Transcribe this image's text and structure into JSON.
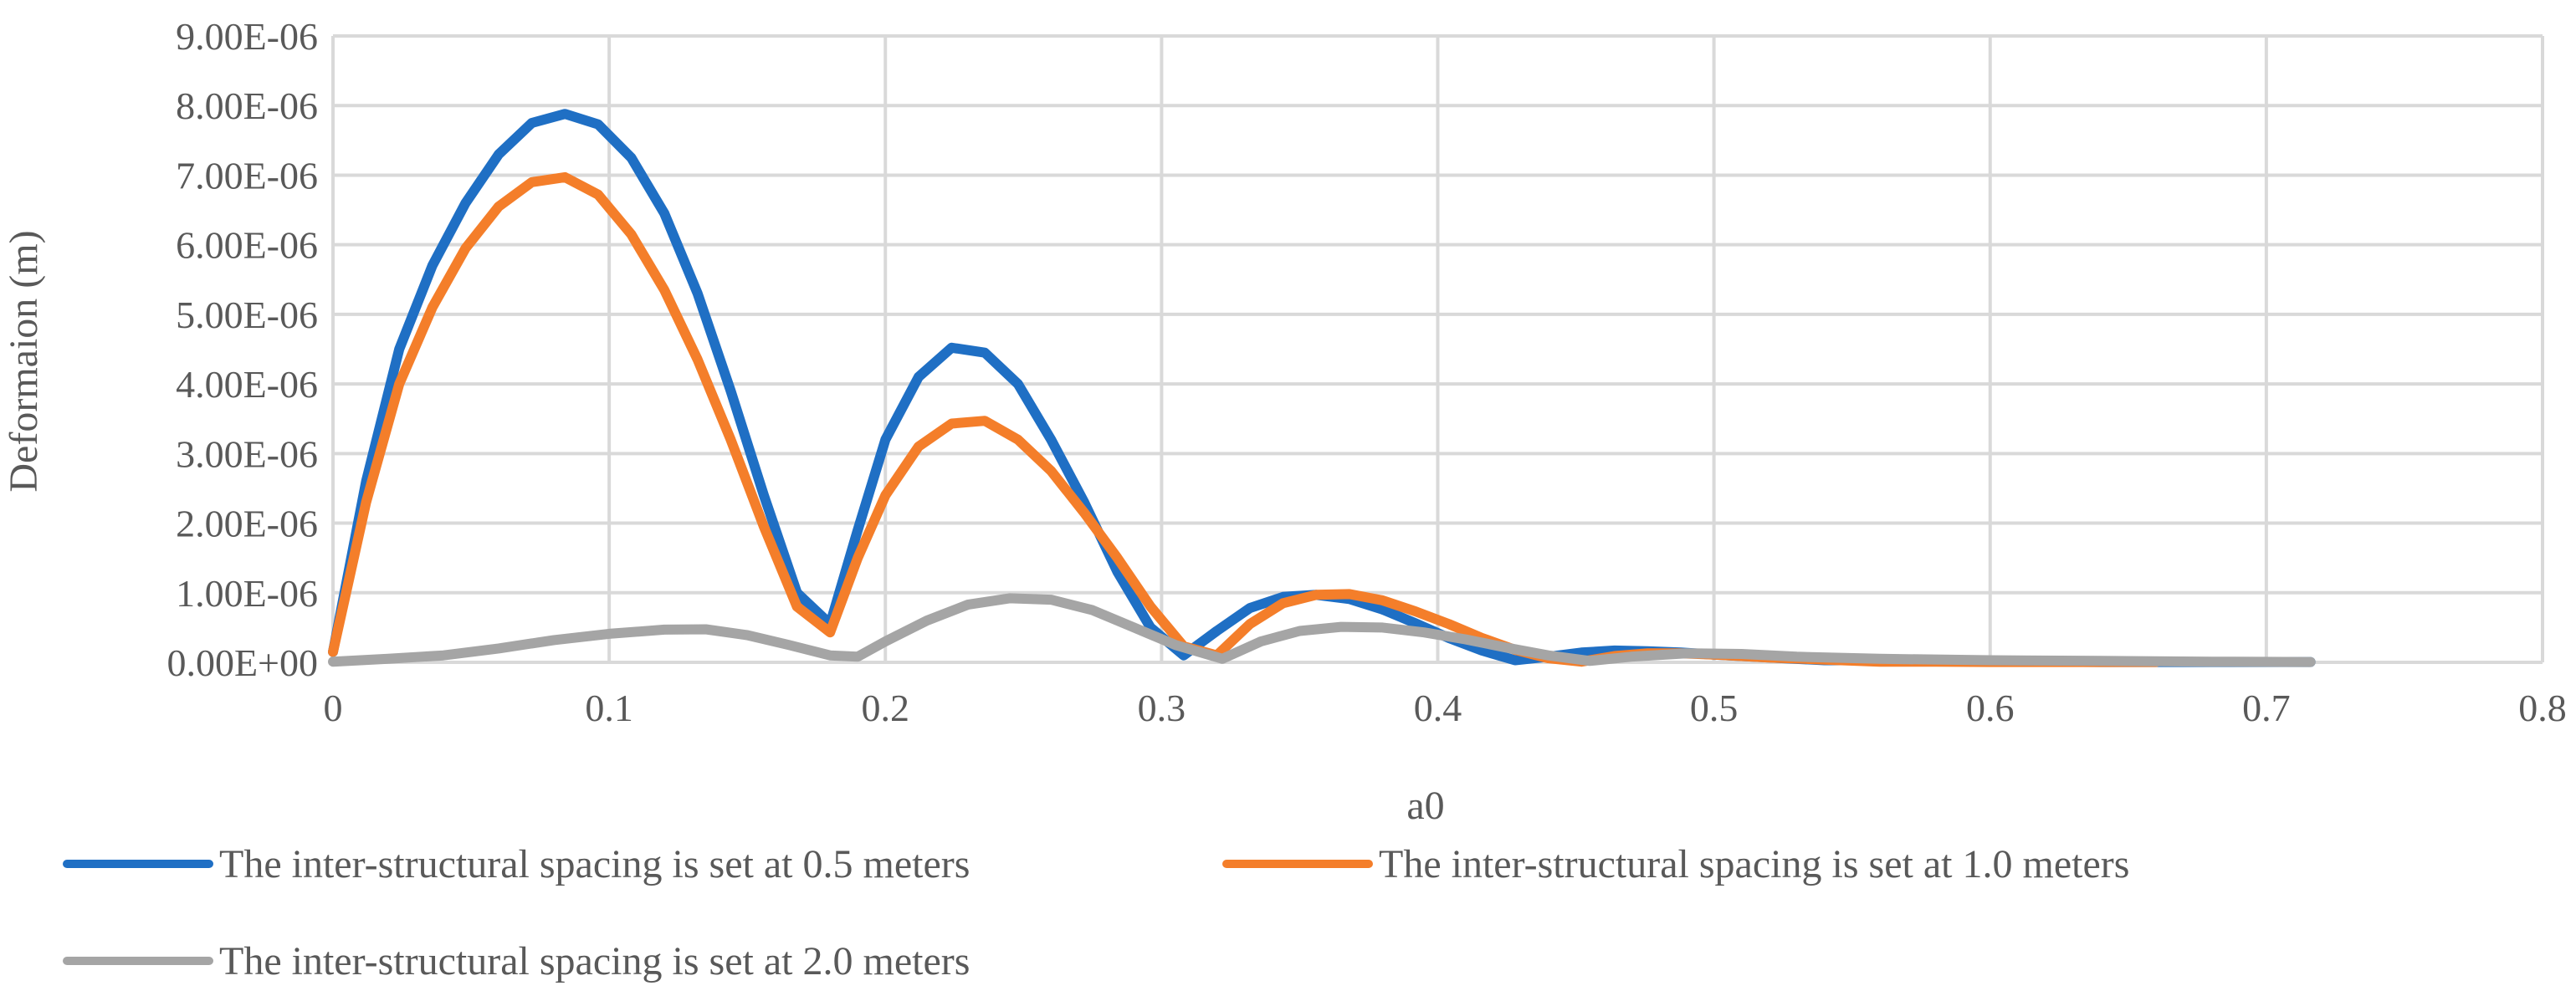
{
  "chart_data": {
    "type": "line",
    "title": "",
    "xlabel": "a0",
    "ylabel": "Deformaion (m)",
    "xlim": [
      0,
      0.8
    ],
    "ylim": [
      0,
      9e-06
    ],
    "x_ticks": [
      "0",
      "0.1",
      "0.2",
      "0.3",
      "0.4",
      "0.5",
      "0.6",
      "0.7",
      "0.8"
    ],
    "y_ticks": [
      "0.00E+00",
      "1.00E-06",
      "2.00E-06",
      "3.00E-06",
      "4.00E-06",
      "5.00E-06",
      "6.00E-06",
      "7.00E-06",
      "8.00E-06",
      "9.00E-06"
    ],
    "grid": true,
    "legend_position": "bottom",
    "series": [
      {
        "name": "The inter-structural spacing is set at 0.5 meters",
        "color": "#1f6fc4",
        "x": [
          0,
          0.012,
          0.024,
          0.036,
          0.048,
          0.06,
          0.072,
          0.084,
          0.096,
          0.108,
          0.12,
          0.132,
          0.144,
          0.156,
          0.168,
          0.18,
          0.19,
          0.2,
          0.212,
          0.224,
          0.236,
          0.248,
          0.26,
          0.272,
          0.284,
          0.296,
          0.308,
          0.32,
          0.332,
          0.344,
          0.356,
          0.368,
          0.38,
          0.392,
          0.404,
          0.416,
          0.428,
          0.44,
          0.452,
          0.464,
          0.476,
          0.488,
          0.5,
          0.52,
          0.54,
          0.56,
          0.58,
          0.6,
          0.62,
          0.64,
          0.66,
          0.68,
          0.7,
          0.716
        ],
        "values": [
          1.5e-07,
          2.6e-06,
          4.5e-06,
          5.7e-06,
          6.6e-06,
          7.3e-06,
          7.75e-06,
          7.88e-06,
          7.73e-06,
          7.25e-06,
          6.45e-06,
          5.3e-06,
          3.9e-06,
          2.4e-06,
          1e-06,
          5.5e-07,
          1.9e-06,
          3.2e-06,
          4.1e-06,
          4.52e-06,
          4.45e-06,
          4e-06,
          3.2e-06,
          2.3e-06,
          1.3e-06,
          5e-07,
          1e-07,
          4.5e-07,
          7.8e-07,
          9.4e-07,
          9.7e-07,
          9.1e-07,
          7.6e-07,
          5.6e-07,
          3.5e-07,
          1.7e-07,
          3e-08,
          8e-08,
          1.4e-07,
          1.7e-07,
          1.6e-07,
          1.4e-07,
          1.1e-07,
          7e-08,
          3e-08,
          3e-08,
          2e-08,
          1e-08,
          1e-08,
          5e-09,
          5e-09,
          5e-09,
          5e-09,
          5e-09
        ]
      },
      {
        "name": "The inter-structural spacing is set at 1.0 meters",
        "color": "#f47e2a",
        "x": [
          0,
          0.012,
          0.024,
          0.036,
          0.048,
          0.06,
          0.072,
          0.084,
          0.096,
          0.108,
          0.12,
          0.132,
          0.144,
          0.156,
          0.168,
          0.18,
          0.19,
          0.2,
          0.212,
          0.224,
          0.236,
          0.248,
          0.26,
          0.272,
          0.284,
          0.296,
          0.308,
          0.32,
          0.332,
          0.344,
          0.356,
          0.368,
          0.38,
          0.392,
          0.404,
          0.416,
          0.428,
          0.44,
          0.452,
          0.464,
          0.476,
          0.488,
          0.5,
          0.52,
          0.54,
          0.56,
          0.58,
          0.6,
          0.62,
          0.64,
          0.66
        ],
        "values": [
          1.5e-07,
          2.3e-06,
          4e-06,
          5.1e-06,
          5.95e-06,
          6.55e-06,
          6.9e-06,
          6.97e-06,
          6.72e-06,
          6.15e-06,
          5.35e-06,
          4.35e-06,
          3.2e-06,
          1.95e-06,
          8e-07,
          4.3e-07,
          1.5e-06,
          2.4e-06,
          3.1e-06,
          3.43e-06,
          3.47e-06,
          3.2e-06,
          2.75e-06,
          2.15e-06,
          1.5e-06,
          8e-07,
          2.3e-07,
          1e-07,
          5.5e-07,
          8.5e-07,
          9.7e-07,
          9.8e-07,
          8.9e-07,
          7.3e-07,
          5.5e-07,
          3.5e-07,
          1.8e-07,
          6e-08,
          1e-08,
          9e-08,
          1.3e-07,
          1.3e-07,
          1.1e-07,
          7e-08,
          4e-08,
          1e-08,
          1e-08,
          5e-09,
          5e-09,
          5e-09,
          5e-09
        ]
      },
      {
        "name": "The inter-structural spacing is set at 2.0 meters",
        "color": "#a5a5a5",
        "x": [
          0,
          0.02,
          0.04,
          0.06,
          0.08,
          0.1,
          0.12,
          0.135,
          0.15,
          0.165,
          0.18,
          0.19,
          0.2,
          0.215,
          0.23,
          0.245,
          0.26,
          0.275,
          0.29,
          0.305,
          0.322,
          0.336,
          0.35,
          0.365,
          0.38,
          0.395,
          0.41,
          0.425,
          0.44,
          0.455,
          0.47,
          0.49,
          0.51,
          0.53,
          0.56,
          0.6,
          0.64,
          0.68,
          0.716
        ],
        "values": [
          1e-08,
          5e-08,
          1e-07,
          2e-07,
          3.2e-07,
          4.1e-07,
          4.7e-07,
          4.75e-07,
          3.9e-07,
          2.5e-07,
          1e-07,
          8e-08,
          3e-07,
          6e-07,
          8.3e-07,
          9.2e-07,
          9e-07,
          7.5e-07,
          5e-07,
          2.5e-07,
          5e-08,
          3e-07,
          4.5e-07,
          5.1e-07,
          5e-07,
          4.3e-07,
          3.3e-07,
          2.1e-07,
          1e-07,
          2e-08,
          8e-08,
          1.3e-07,
          1.2e-07,
          8e-08,
          5e-08,
          3e-08,
          2e-08,
          1e-08,
          5e-09
        ]
      }
    ]
  }
}
